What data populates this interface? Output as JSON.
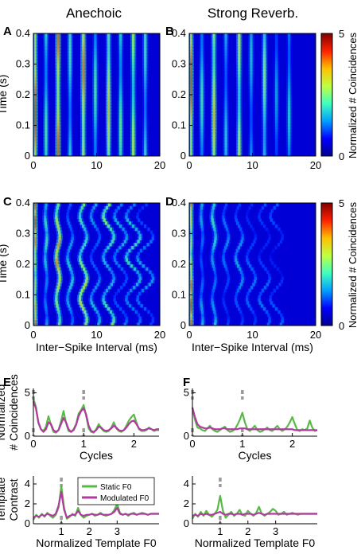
{
  "columns": {
    "left": "Anechoic",
    "right": "Strong Reverb."
  },
  "panel_letters": [
    "A",
    "B",
    "C",
    "D",
    "E",
    "F"
  ],
  "colorbar": {
    "label": "Normalized # Coincidences",
    "ticks": [
      "0",
      "5"
    ],
    "colormap": [
      "#00008f",
      "#0000ff",
      "#00a0ff",
      "#40ffc0",
      "#c0ff40",
      "#ffc000",
      "#ff2000",
      "#800000"
    ]
  },
  "chart_data": [
    {
      "id": "A",
      "type": "heatmap",
      "title": "Anechoic",
      "ylabel": "Time (s)",
      "xlabel": "",
      "xlim": [
        0,
        20
      ],
      "ylim": [
        0,
        0.4
      ],
      "zlim": [
        0,
        5
      ],
      "xticks": [
        "0",
        "10",
        "20"
      ],
      "yticks": [
        "0",
        "0.1",
        "0.2",
        "0.3",
        "0.4"
      ],
      "stripes_ms": [
        0.3,
        2.0,
        3.9,
        5.8,
        7.9,
        9.8,
        11.9,
        13.8,
        15.8,
        17.7
      ],
      "stripe_intensity": [
        4.8,
        2.5,
        4.6,
        2.4,
        4.3,
        2.5,
        3.8,
        2.6,
        3.2,
        2.4
      ],
      "modulated": false
    },
    {
      "id": "B",
      "type": "heatmap",
      "title": "Strong Reverb.",
      "ylabel": "",
      "xlabel": "",
      "xlim": [
        0,
        20
      ],
      "ylim": [
        0,
        0.4
      ],
      "zlim": [
        0,
        5
      ],
      "xticks": [
        "0",
        "10",
        "20"
      ],
      "yticks": [
        "0",
        "0.1",
        "0.2",
        "0.3",
        "0.4"
      ],
      "stripes_ms": [
        0.3,
        2.0,
        3.9,
        5.8,
        7.9,
        9.8,
        11.9,
        13.8,
        15.8
      ],
      "stripe_intensity": [
        4.8,
        2.4,
        3.8,
        2.1,
        3.4,
        2.0,
        2.9,
        1.8,
        2.1
      ],
      "modulated": false
    },
    {
      "id": "C",
      "type": "heatmap",
      "ylabel": "Time (s)",
      "xlabel": "Inter−Spike Interval (ms)",
      "xlim": [
        0,
        20
      ],
      "ylim": [
        0,
        0.4
      ],
      "zlim": [
        0,
        5
      ],
      "xticks": [
        "0",
        "10",
        "20"
      ],
      "yticks": [
        "0",
        "0.1",
        "0.2",
        "0.3",
        "0.4"
      ],
      "stripes_ms": [
        0.3,
        2.0,
        3.9,
        5.8,
        7.9,
        9.8,
        11.9,
        13.8,
        15.8,
        17.7
      ],
      "stripe_intensity": [
        4.8,
        2.4,
        4.2,
        2.2,
        3.6,
        2.1,
        3.0,
        2.0,
        2.5,
        1.9
      ],
      "modulated": true
    },
    {
      "id": "D",
      "type": "heatmap",
      "ylabel": "",
      "xlabel": "Inter−Spike Interval (ms)",
      "xlim": [
        0,
        20
      ],
      "ylim": [
        0,
        0.4
      ],
      "zlim": [
        0,
        5
      ],
      "xticks": [
        "0",
        "10",
        "20"
      ],
      "yticks": [
        "0",
        "0.1",
        "0.2",
        "0.3",
        "0.4"
      ],
      "stripes_ms": [
        0.3,
        2.0,
        3.9,
        5.8,
        7.9,
        9.8,
        11.9,
        13.8
      ],
      "stripe_intensity": [
        4.8,
        2.0,
        2.4,
        1.7,
        1.9,
        1.6,
        1.6,
        1.5
      ],
      "modulated": true
    },
    {
      "id": "E-top",
      "type": "line",
      "ylabel": "Normalized\n# Coincidences",
      "xlabel": "Cycles",
      "xlim": [
        0,
        2.5
      ],
      "ylim": [
        0,
        5.5
      ],
      "xticks": [
        "0",
        "1",
        "2"
      ],
      "yticks": [
        "0",
        "5"
      ],
      "markers_x": [
        0,
        1
      ],
      "series": [
        {
          "name": "Static F0",
          "color": "#58b947",
          "x": [
            0,
            0.05,
            0.1,
            0.15,
            0.2,
            0.25,
            0.3,
            0.35,
            0.4,
            0.45,
            0.5,
            0.55,
            0.6,
            0.65,
            0.7,
            0.75,
            0.8,
            0.85,
            0.9,
            0.95,
            1.0,
            1.05,
            1.1,
            1.15,
            1.2,
            1.25,
            1.3,
            1.35,
            1.4,
            1.45,
            1.5,
            1.55,
            1.6,
            1.65,
            1.7,
            1.75,
            1.8,
            1.85,
            1.9,
            1.95,
            2.0,
            2.05,
            2.1,
            2.15,
            2.2,
            2.25,
            2.3,
            2.35,
            2.4,
            2.45,
            2.5
          ],
          "y": [
            4.3,
            3.4,
            1.5,
            0.8,
            0.6,
            1.1,
            2.3,
            1.3,
            0.5,
            0.4,
            0.7,
            1.7,
            2.9,
            1.5,
            0.6,
            0.5,
            0.8,
            1.4,
            2.6,
            3.0,
            3.6,
            2.3,
            0.9,
            0.5,
            0.4,
            0.8,
            1.4,
            0.9,
            0.6,
            0.5,
            0.6,
            1.0,
            1.6,
            0.9,
            0.6,
            0.5,
            0.7,
            1.2,
            1.8,
            2.2,
            2.5,
            1.6,
            0.8,
            0.6,
            0.6,
            0.7,
            1.0,
            0.8,
            0.6,
            0.7,
            0.7
          ]
        },
        {
          "name": "Modulated F0",
          "color": "#b03aa0",
          "x": [
            0,
            0.05,
            0.1,
            0.15,
            0.2,
            0.25,
            0.3,
            0.35,
            0.4,
            0.45,
            0.5,
            0.55,
            0.6,
            0.65,
            0.7,
            0.75,
            0.8,
            0.85,
            0.9,
            0.95,
            1.0,
            1.05,
            1.1,
            1.15,
            1.2,
            1.25,
            1.3,
            1.35,
            1.4,
            1.45,
            1.5,
            1.55,
            1.6,
            1.65,
            1.7,
            1.75,
            1.8,
            1.85,
            1.9,
            1.95,
            2.0,
            2.05,
            2.1,
            2.15,
            2.2,
            2.25,
            2.3,
            2.35,
            2.4,
            2.45,
            2.5
          ],
          "y": [
            4.0,
            3.2,
            1.6,
            0.8,
            0.5,
            0.8,
            1.6,
            1.4,
            0.7,
            0.5,
            0.7,
            1.4,
            2.1,
            1.6,
            0.8,
            0.5,
            0.7,
            1.3,
            2.3,
            2.9,
            3.2,
            2.5,
            1.2,
            0.6,
            0.5,
            0.7,
            1.1,
            1.0,
            0.7,
            0.6,
            0.7,
            0.9,
            1.2,
            1.0,
            0.7,
            0.6,
            0.7,
            1.0,
            1.4,
            1.7,
            1.8,
            1.4,
            0.9,
            0.7,
            0.7,
            0.8,
            0.9,
            0.8,
            0.7,
            0.8,
            0.8
          ]
        }
      ]
    },
    {
      "id": "F-top",
      "type": "line",
      "ylabel": "",
      "xlabel": "Cycles",
      "xlim": [
        0,
        2.5
      ],
      "ylim": [
        0,
        5.5
      ],
      "xticks": [
        "0",
        "1",
        "2"
      ],
      "yticks": [
        "0",
        "5"
      ],
      "markers_x": [
        0,
        1
      ],
      "series": [
        {
          "name": "Static F0",
          "color": "#58b947",
          "x": [
            0,
            0.05,
            0.1,
            0.15,
            0.2,
            0.25,
            0.3,
            0.35,
            0.4,
            0.45,
            0.5,
            0.55,
            0.6,
            0.65,
            0.7,
            0.75,
            0.8,
            0.85,
            0.9,
            0.95,
            1.0,
            1.05,
            1.1,
            1.15,
            1.2,
            1.25,
            1.3,
            1.35,
            1.4,
            1.45,
            1.5,
            1.55,
            1.6,
            1.65,
            1.7,
            1.75,
            1.8,
            1.85,
            1.9,
            1.95,
            2.0,
            2.05,
            2.1,
            2.15,
            2.2,
            2.25,
            2.3,
            2.35,
            2.4,
            2.45,
            2.5
          ],
          "y": [
            3.3,
            1.9,
            1.0,
            0.9,
            0.7,
            0.6,
            0.9,
            1.2,
            0.8,
            0.6,
            0.5,
            0.7,
            0.9,
            1.1,
            0.7,
            0.5,
            0.6,
            0.8,
            1.3,
            1.9,
            2.7,
            1.6,
            0.8,
            0.6,
            0.9,
            1.2,
            0.7,
            0.5,
            0.6,
            0.8,
            1.0,
            0.7,
            0.6,
            0.9,
            1.2,
            0.8,
            0.6,
            0.8,
            1.1,
            1.6,
            2.2,
            1.4,
            0.7,
            0.6,
            0.8,
            0.7,
            0.9,
            1.8,
            1.0,
            0.6,
            0.7
          ]
        },
        {
          "name": "Modulated F0",
          "color": "#b03aa0",
          "x": [
            0,
            0.05,
            0.1,
            0.15,
            0.2,
            0.25,
            0.3,
            0.35,
            0.4,
            0.45,
            0.5,
            0.55,
            0.6,
            0.65,
            0.7,
            0.75,
            0.8,
            0.85,
            0.9,
            0.95,
            1.0,
            1.05,
            1.1,
            1.15,
            1.2,
            1.25,
            1.3,
            1.35,
            1.4,
            1.45,
            1.5,
            1.55,
            1.6,
            1.65,
            1.7,
            1.75,
            1.8,
            1.85,
            1.9,
            1.95,
            2.0,
            2.05,
            2.1,
            2.15,
            2.2,
            2.25,
            2.3,
            2.35,
            2.4,
            2.45,
            2.5
          ],
          "y": [
            3.3,
            2.2,
            1.4,
            1.1,
            1.0,
            0.9,
            0.9,
            1.0,
            0.9,
            0.8,
            0.8,
            0.8,
            0.9,
            0.9,
            0.8,
            0.8,
            0.8,
            0.8,
            0.8,
            0.9,
            0.9,
            0.9,
            0.8,
            0.8,
            0.8,
            0.8,
            0.8,
            0.8,
            0.8,
            0.8,
            0.8,
            0.8,
            0.8,
            0.8,
            0.8,
            0.8,
            0.8,
            0.8,
            0.8,
            0.8,
            0.8,
            0.7,
            0.7,
            0.7,
            0.7,
            0.7,
            0.7,
            0.7,
            0.7,
            0.7,
            0.7
          ]
        }
      ]
    },
    {
      "id": "E-bottom",
      "type": "line",
      "ylabel": "Template\nContrast",
      "xlabel": "Normalized Template F0",
      "xlim": [
        0,
        4.5
      ],
      "ylim": [
        0,
        4.8
      ],
      "xticks": [
        "1",
        "2",
        "3"
      ],
      "yticks": [
        "0",
        "2",
        "4"
      ],
      "markers_x": [
        1
      ],
      "legend": {
        "position": "top-right",
        "entries": [
          "Static F0",
          "Modulated F0"
        ]
      },
      "series": [
        {
          "name": "Static F0",
          "color": "#58b947",
          "x": [
            0,
            0.1,
            0.2,
            0.3,
            0.4,
            0.5,
            0.6,
            0.7,
            0.8,
            0.9,
            1.0,
            1.1,
            1.2,
            1.3,
            1.4,
            1.5,
            1.6,
            1.7,
            1.8,
            1.9,
            2.0,
            2.1,
            2.2,
            2.3,
            2.4,
            2.5,
            2.6,
            2.7,
            2.8,
            2.9,
            3.0,
            3.1,
            3.2,
            3.3,
            3.4,
            3.5,
            3.6,
            3.7,
            3.8,
            3.9,
            4.0,
            4.1,
            4.2,
            4.3,
            4.4,
            4.5
          ],
          "y": [
            0.4,
            0.9,
            0.6,
            1.0,
            0.7,
            1.1,
            0.8,
            0.6,
            0.9,
            1.6,
            3.8,
            1.6,
            0.5,
            0.7,
            1.0,
            0.8,
            1.6,
            0.9,
            0.6,
            0.8,
            0.9,
            1.0,
            0.8,
            0.9,
            1.1,
            0.9,
            0.8,
            0.9,
            1.0,
            1.4,
            2.0,
            1.1,
            0.9,
            1.0,
            0.8,
            1.0,
            1.1,
            0.9,
            1.0,
            1.1,
            1.0,
            0.9,
            1.0,
            1.0,
            1.0,
            1.0
          ]
        },
        {
          "name": "Modulated F0",
          "color": "#b03aa0",
          "x": [
            0,
            0.1,
            0.2,
            0.3,
            0.4,
            0.5,
            0.6,
            0.7,
            0.8,
            0.9,
            1.0,
            1.1,
            1.2,
            1.3,
            1.4,
            1.5,
            1.6,
            1.7,
            1.8,
            1.9,
            2.0,
            2.1,
            2.2,
            2.3,
            2.4,
            2.5,
            2.6,
            2.7,
            2.8,
            2.9,
            3.0,
            3.1,
            3.2,
            3.3,
            3.4,
            3.5,
            3.6,
            3.7,
            3.8,
            3.9,
            4.0,
            4.1,
            4.2,
            4.3,
            4.4,
            4.5
          ],
          "y": [
            0.6,
            0.8,
            0.7,
            0.9,
            0.8,
            1.0,
            0.9,
            0.8,
            1.0,
            1.8,
            3.2,
            1.4,
            0.6,
            0.8,
            0.9,
            0.9,
            1.3,
            0.9,
            0.8,
            0.9,
            0.9,
            1.0,
            0.9,
            0.9,
            1.0,
            0.9,
            0.9,
            0.9,
            1.0,
            1.2,
            1.6,
            1.0,
            0.9,
            1.0,
            0.9,
            1.0,
            1.0,
            0.9,
            1.0,
            1.0,
            1.0,
            0.9,
            1.0,
            1.0,
            1.0,
            1.0
          ]
        }
      ]
    },
    {
      "id": "F-bottom",
      "type": "line",
      "ylabel": "",
      "xlabel": "Normalized Template F0",
      "xlim": [
        0,
        4.5
      ],
      "ylim": [
        0,
        4.8
      ],
      "xticks": [
        "1",
        "2",
        "3"
      ],
      "yticks": [
        "0",
        "2",
        "4"
      ],
      "markers_x": [
        1
      ],
      "series": [
        {
          "name": "Static F0",
          "color": "#58b947",
          "x": [
            0,
            0.1,
            0.2,
            0.3,
            0.4,
            0.5,
            0.6,
            0.7,
            0.8,
            0.9,
            1.0,
            1.1,
            1.2,
            1.3,
            1.4,
            1.5,
            1.6,
            1.7,
            1.8,
            1.9,
            2.0,
            2.1,
            2.2,
            2.3,
            2.4,
            2.5,
            2.6,
            2.7,
            2.8,
            2.9,
            3.0,
            3.1,
            3.2,
            3.3,
            3.4,
            3.5,
            3.6,
            3.7,
            3.8,
            3.9,
            4.0,
            4.1,
            4.2,
            4.3,
            4.4,
            4.5
          ],
          "y": [
            0.5,
            1.0,
            0.7,
            1.2,
            0.8,
            1.3,
            0.9,
            0.7,
            1.0,
            1.4,
            2.8,
            1.3,
            0.6,
            0.9,
            1.2,
            0.8,
            1.0,
            1.4,
            0.9,
            0.8,
            1.3,
            1.0,
            0.8,
            1.1,
            1.7,
            1.0,
            0.8,
            1.0,
            1.2,
            1.5,
            1.3,
            0.9,
            1.0,
            1.2,
            0.9,
            1.0,
            1.1,
            1.0,
            0.9,
            1.0,
            1.0,
            1.0,
            1.0,
            1.0,
            1.0,
            1.0
          ]
        },
        {
          "name": "Modulated F0",
          "color": "#b03aa0",
          "x": [
            0,
            0.1,
            0.2,
            0.3,
            0.4,
            0.5,
            0.6,
            0.7,
            0.8,
            0.9,
            1.0,
            1.1,
            1.2,
            1.3,
            1.4,
            1.5,
            1.6,
            1.7,
            1.8,
            1.9,
            2.0,
            2.1,
            2.2,
            2.3,
            2.4,
            2.5,
            2.6,
            2.7,
            2.8,
            2.9,
            3.0,
            3.1,
            3.2,
            3.3,
            3.4,
            3.5,
            3.6,
            3.7,
            3.8,
            3.9,
            4.0,
            4.1,
            4.2,
            4.3,
            4.4,
            4.5
          ],
          "y": [
            0.8,
            0.9,
            0.8,
            1.0,
            0.9,
            1.0,
            0.9,
            0.9,
            1.0,
            1.1,
            1.2,
            1.0,
            0.9,
            1.0,
            1.0,
            0.9,
            1.0,
            1.0,
            0.9,
            1.0,
            1.0,
            1.0,
            0.9,
            1.0,
            1.1,
            1.0,
            0.9,
            1.0,
            1.0,
            1.0,
            1.0,
            1.0,
            1.0,
            1.0,
            1.0,
            1.0,
            1.0,
            1.0,
            1.0,
            1.0,
            1.0,
            1.0,
            1.0,
            1.0,
            1.0,
            1.0
          ]
        }
      ]
    }
  ]
}
